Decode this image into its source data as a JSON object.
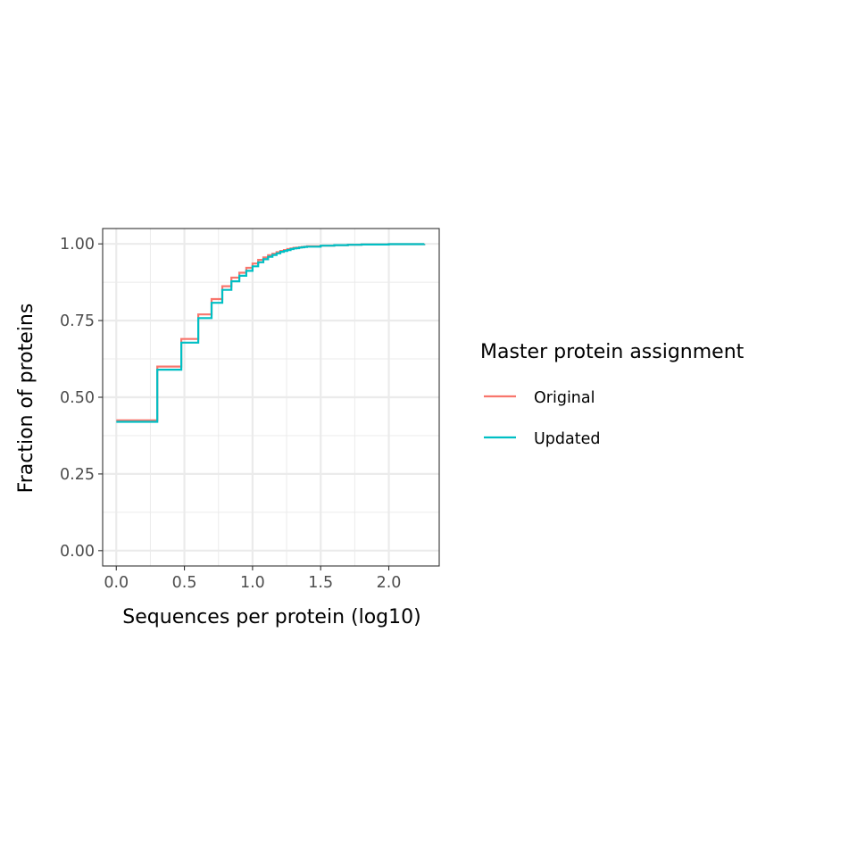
{
  "chart_data": {
    "type": "line",
    "step": true,
    "title": "",
    "xlabel": "Sequences per protein (log10)",
    "ylabel": "Fraction of proteins",
    "xlim": [
      -0.1,
      2.37
    ],
    "ylim": [
      -0.05,
      1.05
    ],
    "x_ticks": [
      0.0,
      0.5,
      1.0,
      1.5,
      2.0
    ],
    "x_tick_labels": [
      "0.0",
      "0.5",
      "1.0",
      "1.5",
      "2.0"
    ],
    "y_ticks": [
      0.0,
      0.25,
      0.5,
      0.75,
      1.0
    ],
    "y_tick_labels": [
      "0.00",
      "0.25",
      "0.50",
      "0.75",
      "1.00"
    ],
    "grid": true,
    "legend": {
      "title": "Master protein assignment",
      "position": "right"
    },
    "series": [
      {
        "name": "Original",
        "color": "#F8766D",
        "points": [
          [
            0.0,
            0.425
          ],
          [
            0.301,
            0.6
          ],
          [
            0.477,
            0.69
          ],
          [
            0.602,
            0.77
          ],
          [
            0.699,
            0.82
          ],
          [
            0.778,
            0.862
          ],
          [
            0.845,
            0.89
          ],
          [
            0.903,
            0.906
          ],
          [
            0.954,
            0.922
          ],
          [
            1.0,
            0.936
          ],
          [
            1.041,
            0.948
          ],
          [
            1.079,
            0.956
          ],
          [
            1.114,
            0.963
          ],
          [
            1.146,
            0.968
          ],
          [
            1.176,
            0.973
          ],
          [
            1.204,
            0.977
          ],
          [
            1.23,
            0.98
          ],
          [
            1.255,
            0.983
          ],
          [
            1.279,
            0.985
          ],
          [
            1.301,
            0.987
          ],
          [
            1.322,
            0.988
          ],
          [
            1.342,
            0.989
          ],
          [
            1.362,
            0.99
          ],
          [
            1.38,
            0.991
          ],
          [
            1.4,
            0.992
          ],
          [
            1.5,
            0.994
          ],
          [
            1.6,
            0.996
          ],
          [
            1.7,
            0.997
          ],
          [
            1.8,
            0.998
          ],
          [
            2.0,
            0.999
          ],
          [
            2.26,
            1.0
          ]
        ]
      },
      {
        "name": "Updated",
        "color": "#00BFC4",
        "points": [
          [
            0.0,
            0.42
          ],
          [
            0.301,
            0.59
          ],
          [
            0.477,
            0.678
          ],
          [
            0.602,
            0.758
          ],
          [
            0.699,
            0.808
          ],
          [
            0.778,
            0.85
          ],
          [
            0.845,
            0.878
          ],
          [
            0.903,
            0.896
          ],
          [
            0.954,
            0.912
          ],
          [
            1.0,
            0.927
          ],
          [
            1.041,
            0.94
          ],
          [
            1.079,
            0.95
          ],
          [
            1.114,
            0.958
          ],
          [
            1.146,
            0.964
          ],
          [
            1.176,
            0.969
          ],
          [
            1.204,
            0.974
          ],
          [
            1.23,
            0.977
          ],
          [
            1.255,
            0.98
          ],
          [
            1.279,
            0.983
          ],
          [
            1.301,
            0.985
          ],
          [
            1.322,
            0.986
          ],
          [
            1.342,
            0.988
          ],
          [
            1.362,
            0.989
          ],
          [
            1.38,
            0.99
          ],
          [
            1.4,
            0.991
          ],
          [
            1.5,
            0.994
          ],
          [
            1.6,
            0.996
          ],
          [
            1.7,
            0.997
          ],
          [
            1.8,
            0.998
          ],
          [
            2.0,
            0.999
          ],
          [
            2.26,
            1.0
          ]
        ]
      }
    ]
  }
}
